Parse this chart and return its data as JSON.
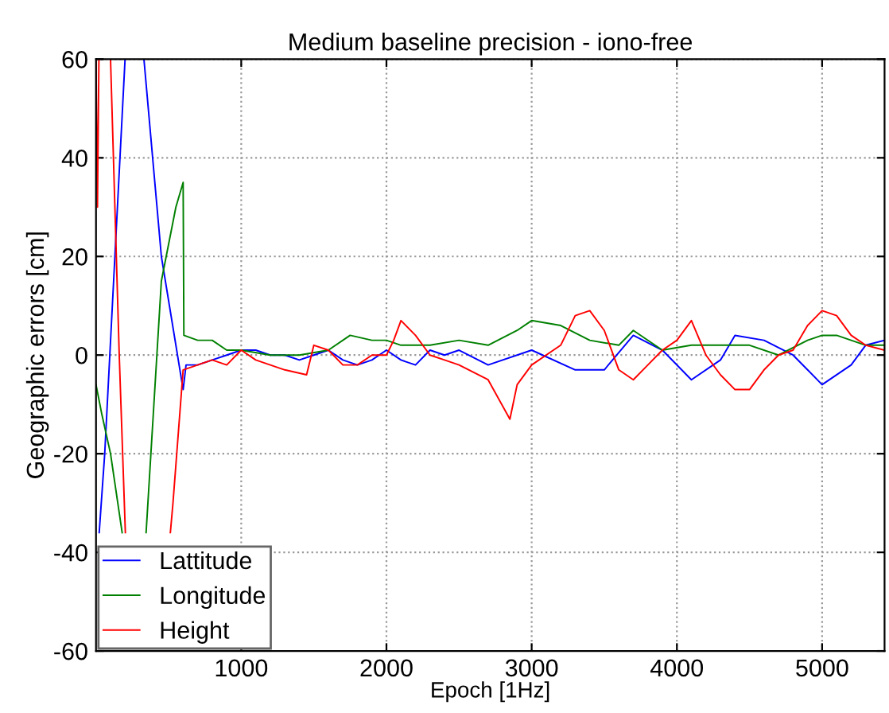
{
  "chart_data": {
    "type": "line",
    "title": "Medium baseline precision - iono-free",
    "xlabel": "Epoch [1Hz]",
    "ylabel": "Geographic errors [cm]",
    "xlim": [
      0,
      5430
    ],
    "xticks": [
      1000,
      2000,
      3000,
      4000,
      5000
    ],
    "ylim": [
      -60,
      60
    ],
    "yticks": [
      -60,
      -40,
      -20,
      0,
      20,
      40,
      60
    ],
    "grid": true,
    "legend": "bottom left",
    "marker": "none",
    "line_style": "solid",
    "series": [
      {
        "name": "Lattitude",
        "color": "#0000ff",
        "x": [
          22,
          60,
          130,
          200,
          265,
          330,
          450,
          600,
          620,
          700,
          800,
          900,
          1000,
          1100,
          1200,
          1300,
          1400,
          1500,
          1600,
          1700,
          1800,
          1900,
          2000,
          2100,
          2200,
          2300,
          2400,
          2500,
          2700,
          3000,
          3300,
          3500,
          3700,
          3900,
          4100,
          4300,
          4400,
          4600,
          4800,
          4900,
          5000,
          5200,
          5300,
          5430
        ],
        "values": [
          -36,
          -20,
          20,
          60,
          null,
          60,
          20,
          -7,
          -2,
          -2,
          -1,
          0,
          1,
          1,
          0,
          0,
          -1,
          0,
          1,
          -1,
          -2,
          -1,
          1,
          -1,
          -2,
          1,
          0,
          1,
          -2,
          1,
          -3,
          -3,
          4,
          1,
          -5,
          -1,
          4,
          3,
          0,
          -3,
          -6,
          -2,
          2,
          3
        ]
      },
      {
        "name": "Longitude",
        "color": "#008000",
        "x": [
          0,
          40,
          100,
          180,
          270,
          345,
          450,
          550,
          600,
          605,
          700,
          800,
          900,
          1000,
          1200,
          1400,
          1600,
          1750,
          1900,
          2000,
          2100,
          2300,
          2500,
          2700,
          2900,
          3000,
          3200,
          3400,
          3600,
          3700,
          3900,
          4100,
          4300,
          4500,
          4700,
          4900,
          5000,
          5100,
          5300,
          5430
        ],
        "values": [
          -6,
          -12,
          -20,
          -36,
          null,
          -36,
          15,
          30,
          35,
          4,
          3,
          3,
          1,
          1,
          0,
          0,
          1,
          4,
          3,
          3,
          2,
          2,
          3,
          2,
          5,
          7,
          6,
          3,
          2,
          5,
          1,
          2,
          2,
          2,
          0,
          3,
          4,
          4,
          2,
          2
        ]
      },
      {
        "name": "Height",
        "color": "#ff0000",
        "x": [
          0,
          10,
          20,
          60,
          100,
          160,
          202,
          335,
          512,
          530,
          600,
          700,
          800,
          900,
          1000,
          1100,
          1200,
          1300,
          1450,
          1500,
          1600,
          1700,
          1800,
          1900,
          2000,
          2050,
          2100,
          2200,
          2300,
          2400,
          2500,
          2700,
          2850,
          2900,
          3000,
          3200,
          3300,
          3400,
          3500,
          3600,
          3700,
          3800,
          3900,
          4000,
          4100,
          4200,
          4300,
          4400,
          4500,
          4600,
          4700,
          4800,
          4900,
          5000,
          5100,
          5200,
          5300,
          5430
        ],
        "values": [
          60,
          30,
          60,
          null,
          60,
          0,
          -36,
          null,
          -36,
          -30,
          -3,
          -2,
          -1,
          -2,
          1,
          -1,
          -2,
          -3,
          -4,
          2,
          1,
          -2,
          -2,
          0,
          0,
          3,
          7,
          4,
          0,
          -1,
          -2,
          -5,
          -13,
          -6,
          -2,
          2,
          8,
          9,
          5,
          -3,
          -5,
          -2,
          1,
          3,
          7,
          0,
          -4,
          -7,
          -7,
          -3,
          0,
          1,
          6,
          9,
          8,
          4,
          2,
          1
        ]
      }
    ]
  }
}
